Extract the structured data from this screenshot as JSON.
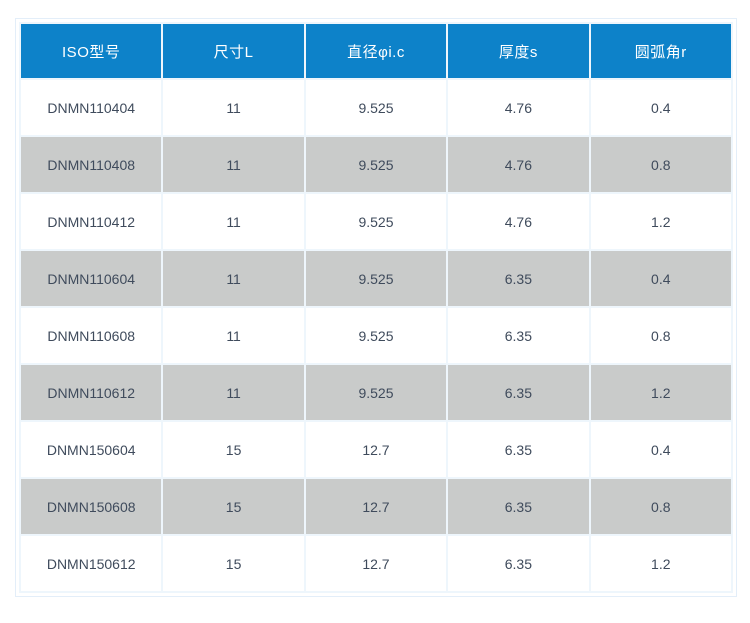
{
  "chart_data": {
    "type": "table",
    "columns": [
      "ISO型号",
      "尺寸L",
      "直径φi.c",
      "厚度s",
      "圆弧角r"
    ],
    "rows": [
      [
        "DNMN110404",
        "11",
        "9.525",
        "4.76",
        "0.4"
      ],
      [
        "DNMN110408",
        "11",
        "9.525",
        "4.76",
        "0.8"
      ],
      [
        "DNMN110412",
        "11",
        "9.525",
        "4.76",
        "1.2"
      ],
      [
        "DNMN110604",
        "11",
        "9.525",
        "6.35",
        "0.4"
      ],
      [
        "DNMN110608",
        "11",
        "9.525",
        "6.35",
        "0.8"
      ],
      [
        "DNMN110612",
        "11",
        "9.525",
        "6.35",
        "1.2"
      ],
      [
        "DNMN150604",
        "15",
        "12.7",
        "6.35",
        "0.4"
      ],
      [
        "DNMN150608",
        "15",
        "12.7",
        "6.35",
        "0.8"
      ],
      [
        "DNMN150612",
        "15",
        "12.7",
        "6.35",
        "1.2"
      ]
    ],
    "layout": {
      "striping": "odd rows gray starting from second data row",
      "grid": "on",
      "header_position": "top"
    }
  },
  "colors": {
    "header_bg": "#0d82c9",
    "header_text": "#ffffff",
    "row_bg": "#ffffff",
    "row_alt_bg": "#c9cbca",
    "cell_text": "#3f4b5c",
    "grid_line": "#eef6fc",
    "outer_border": "#e3eef9"
  }
}
